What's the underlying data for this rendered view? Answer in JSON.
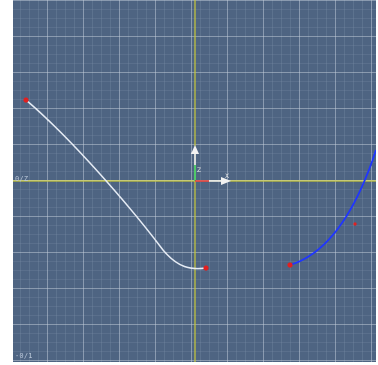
{
  "viewport": {
    "axis_label_left": "0/Z",
    "axis_label_bottom": "-0/1",
    "gizmo": {
      "z_letter": "Z",
      "x_letter": "X"
    },
    "colors": {
      "background": "#4e6482",
      "grid_minor": "#8fa0b6",
      "grid_major": "#c9d3e0",
      "axis": "#c8c83a",
      "curve_1": "#e6ecf5",
      "curve_2": "#1f35ff",
      "control_point": "#e02020"
    }
  }
}
